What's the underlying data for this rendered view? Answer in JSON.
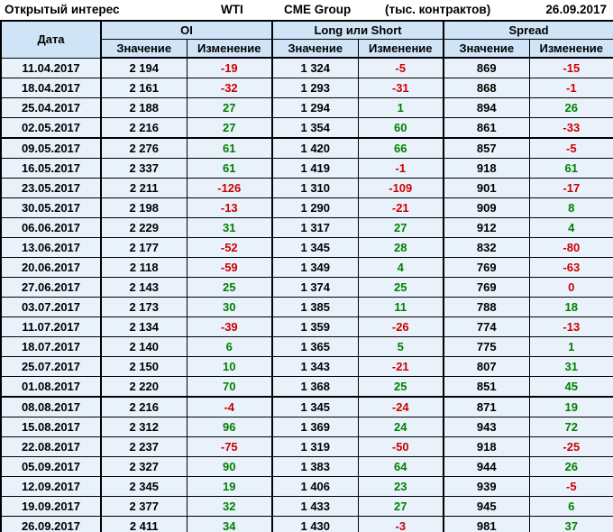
{
  "title_bar": {
    "title": "Открытый интерес",
    "instrument": "WTI",
    "exchange": "CME Group",
    "units": "(тыс. контрактов)",
    "report_date": "26.09.2017"
  },
  "table": {
    "date_header": "Дата",
    "groups": [
      "OI",
      "Long или Short",
      "Spread"
    ],
    "sub_headers": [
      "Значение",
      "Изменение"
    ],
    "thick_border_after_dates": [
      "02.05.2017",
      "01.08.2017"
    ]
  },
  "colors": {
    "positive_change": "#008000",
    "negative_change": "#cc0000",
    "header_bg": "#cfe4f6",
    "row_bg": "#e9f2fb",
    "border": "#000000"
  },
  "chart_data": {
    "type": "table",
    "title": "Открытый интерес",
    "instrument": "WTI",
    "exchange": "CME Group",
    "units": "тыс. контрактов",
    "as_of": "26.09.2017",
    "columns": [
      "Дата",
      "OI Значение",
      "OI Изменение",
      "Long или Short Значение",
      "Long или Short Изменение",
      "Spread Значение",
      "Spread Изменение"
    ],
    "rows": [
      [
        "11.04.2017",
        2194,
        -19,
        1324,
        -5,
        869,
        -15
      ],
      [
        "18.04.2017",
        2161,
        -32,
        1293,
        -31,
        868,
        -1
      ],
      [
        "25.04.2017",
        2188,
        27,
        1294,
        1,
        894,
        26
      ],
      [
        "02.05.2017",
        2216,
        27,
        1354,
        60,
        861,
        -33
      ],
      [
        "09.05.2017",
        2276,
        61,
        1420,
        66,
        857,
        -5
      ],
      [
        "16.05.2017",
        2337,
        61,
        1419,
        -1,
        918,
        61
      ],
      [
        "23.05.2017",
        2211,
        -126,
        1310,
        -109,
        901,
        -17
      ],
      [
        "30.05.2017",
        2198,
        -13,
        1290,
        -21,
        909,
        8
      ],
      [
        "06.06.2017",
        2229,
        31,
        1317,
        27,
        912,
        4
      ],
      [
        "13.06.2017",
        2177,
        -52,
        1345,
        28,
        832,
        -80
      ],
      [
        "20.06.2017",
        2118,
        -59,
        1349,
        4,
        769,
        -63
      ],
      [
        "27.06.2017",
        2143,
        25,
        1374,
        25,
        769,
        0
      ],
      [
        "03.07.2017",
        2173,
        30,
        1385,
        11,
        788,
        18
      ],
      [
        "11.07.2017",
        2134,
        -39,
        1359,
        -26,
        774,
        -13
      ],
      [
        "18.07.2017",
        2140,
        6,
        1365,
        5,
        775,
        1
      ],
      [
        "25.07.2017",
        2150,
        10,
        1343,
        -21,
        807,
        31
      ],
      [
        "01.08.2017",
        2220,
        70,
        1368,
        25,
        851,
        45
      ],
      [
        "08.08.2017",
        2216,
        -4,
        1345,
        -24,
        871,
        19
      ],
      [
        "15.08.2017",
        2312,
        96,
        1369,
        24,
        943,
        72
      ],
      [
        "22.08.2017",
        2237,
        -75,
        1319,
        -50,
        918,
        -25
      ],
      [
        "05.09.2017",
        2327,
        90,
        1383,
        64,
        944,
        26
      ],
      [
        "12.09.2017",
        2345,
        19,
        1406,
        23,
        939,
        -5
      ],
      [
        "19.09.2017",
        2377,
        32,
        1433,
        27,
        945,
        6
      ],
      [
        "26.09.2017",
        2411,
        34,
        1430,
        -3,
        981,
        37
      ]
    ]
  }
}
